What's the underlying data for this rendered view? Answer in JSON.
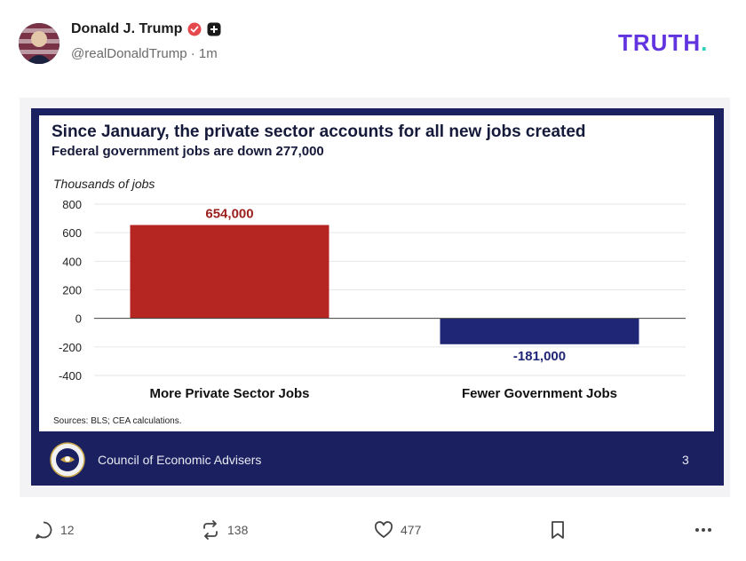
{
  "post": {
    "display_name": "Donald J. Trump",
    "handle": "@realDonaldTrump",
    "separator": "·",
    "time": "1m"
  },
  "brand": {
    "name": "TRUTH",
    "dot": ".",
    "color": "#6234e0",
    "dot_color": "#2ad1b8"
  },
  "slide": {
    "title": "Since January, the private sector accounts for all new jobs created",
    "subtitle": "Federal government jobs are down 277,000",
    "source": "Sources: BLS; CEA calculations.",
    "footer": "Council of Economic Advisers",
    "page": "3",
    "colors": {
      "navy": "#1b2160",
      "bar_positive": "#b52622",
      "bar_negative": "#1f2675"
    }
  },
  "chart_data": {
    "type": "bar",
    "ylabel": "Thousands of jobs",
    "ylim": [
      -400,
      800
    ],
    "yticks": [
      "800",
      "600",
      "400",
      "200",
      "0",
      "-200",
      "-400"
    ],
    "categories": [
      "More Private Sector Jobs",
      "Fewer Government Jobs"
    ],
    "values": [
      654,
      -181
    ],
    "data_labels": [
      "654,000",
      "-181,000"
    ]
  },
  "actions": {
    "replies": "12",
    "retruths": "138",
    "likes": "477"
  },
  "icons": [
    "verified-icon",
    "plus-icon",
    "reply-icon",
    "retruth-icon",
    "like-icon",
    "bookmark-icon",
    "more-icon",
    "cea-seal-icon"
  ]
}
